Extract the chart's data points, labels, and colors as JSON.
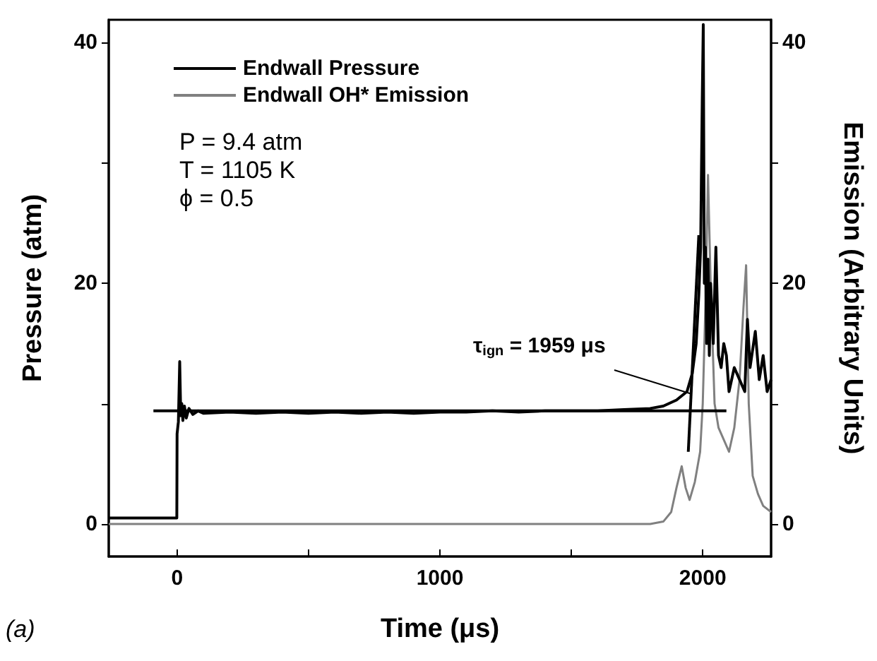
{
  "chart_data": {
    "type": "line",
    "xlabel": "Time (μs)",
    "ylabel": "Pressure (atm)",
    "y2label": "Emission (Arbitrary Units)",
    "xlim": [
      -260,
      2260
    ],
    "xticks": [
      0,
      {
        "value": 500,
        "label": null
      },
      1000,
      {
        "value": 1500,
        "label": null
      },
      2000
    ],
    "ylim": [
      -2.7,
      41.9
    ],
    "yticks": [
      0,
      {
        "value": 10,
        "label": null
      },
      20,
      {
        "value": 30,
        "label": null
      },
      40
    ],
    "y2lim": [
      -2.7,
      41.9
    ],
    "y2ticks": [
      0,
      {
        "value": 10,
        "label": null
      },
      20,
      {
        "value": 30,
        "label": null
      },
      40
    ],
    "legend": "top left",
    "grid": false,
    "marker": "none",
    "line_style": "solid",
    "series": [
      {
        "name": "Endwall Pressure",
        "color": "#000000",
        "x": [
          -260,
          -1,
          0,
          5,
          10,
          14,
          18,
          22,
          28,
          35,
          45,
          60,
          80,
          100,
          200,
          300,
          400,
          500,
          600,
          700,
          800,
          900,
          1000,
          1100,
          1200,
          1300,
          1400,
          1500,
          1600,
          1700,
          1800,
          1850,
          1900,
          1940,
          1960,
          1975,
          1985,
          1992,
          1998,
          2002,
          2006,
          2010,
          2015,
          2020,
          2025,
          2030,
          2040,
          2050,
          2060,
          2070,
          2080,
          2090,
          2100,
          2120,
          2140,
          2160,
          2170,
          2180,
          2200,
          2215,
          2230,
          2245,
          2260
        ],
        "values": [
          0.5,
          0.5,
          7.5,
          8.5,
          13.5,
          9,
          10,
          8.6,
          9.8,
          8.8,
          9.6,
          9.1,
          9.4,
          9.2,
          9.3,
          9.2,
          9.3,
          9.2,
          9.3,
          9.2,
          9.3,
          9.2,
          9.3,
          9.3,
          9.4,
          9.3,
          9.4,
          9.4,
          9.4,
          9.5,
          9.6,
          9.8,
          10.3,
          11,
          12.5,
          15,
          19,
          23,
          35,
          41.5,
          20,
          23,
          15,
          22,
          14,
          20,
          15,
          23,
          14,
          13,
          15,
          14,
          11,
          13,
          12,
          11,
          17,
          13,
          16,
          12,
          14,
          11,
          12
        ]
      },
      {
        "color": "#000000",
        "x": [
          -90,
          2090
        ],
        "values": [
          9.4,
          9.4
        ]
      },
      {
        "color": "#000000",
        "x": [
          1945,
          1985
        ],
        "values": [
          6,
          24
        ]
      },
      {
        "name": "Endwall OH* Emission",
        "color": "#808080",
        "axis": "y2",
        "x": [
          -260,
          0,
          500,
          1000,
          1500,
          1800,
          1850,
          1880,
          1900,
          1920,
          1935,
          1950,
          1970,
          1990,
          2000,
          2010,
          2020,
          2030,
          2045,
          2060,
          2080,
          2100,
          2120,
          2140,
          2155,
          2165,
          2175,
          2190,
          2210,
          2230,
          2260
        ],
        "values": [
          0,
          0,
          0,
          0,
          0,
          0,
          0.2,
          1,
          3,
          4.8,
          3,
          2,
          3.5,
          6,
          10,
          18,
          29,
          20,
          10,
          8,
          7,
          6,
          8,
          12,
          18,
          21.5,
          10,
          4,
          2.5,
          1.5,
          1
        ]
      }
    ],
    "annotations": [
      "P = 9.4 atm",
      "T = 1105 K",
      "ϕ = 0.5",
      {
        "text": "τ$_{ign}$ = 1959 μs",
        "x": 1959,
        "y": 10.8
      },
      "(a)"
    ]
  }
}
